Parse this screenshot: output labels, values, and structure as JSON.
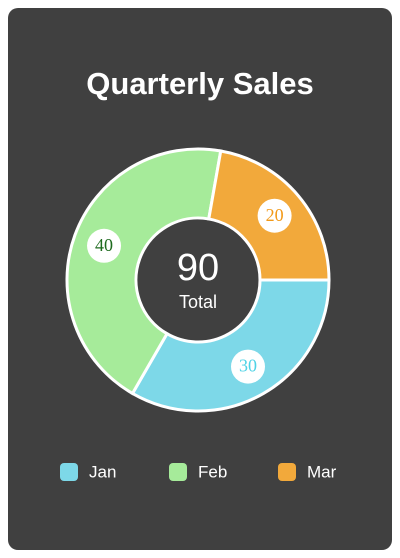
{
  "chart_data": {
    "type": "donut",
    "title": "Quarterly Sales",
    "categories": [
      "Jan",
      "Feb",
      "Mar"
    ],
    "values": [
      30,
      40,
      20
    ],
    "colors": [
      "#7dd8e8",
      "#a6eb9a",
      "#f2a93b"
    ],
    "label_colors": [
      "#4fd3e6",
      "#1f6b1f",
      "#f29a1a"
    ],
    "total": 90,
    "center_label": "Total",
    "legend": "bottom"
  }
}
